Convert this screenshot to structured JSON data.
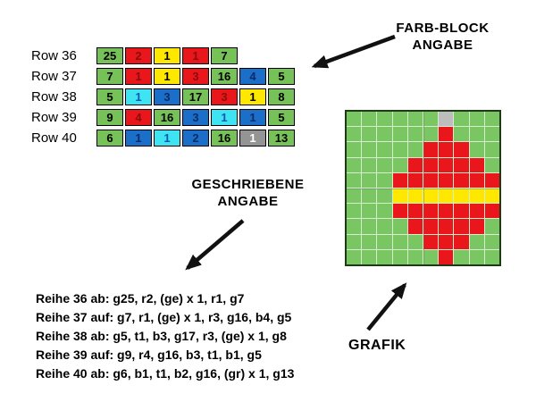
{
  "labels": {
    "farb_block": {
      "line1": "FARB-BLOCK",
      "line2": "ANGABE"
    },
    "geschriebene": {
      "line1": "GESCHRIEBENE",
      "line2": "ANGABE"
    },
    "grafik": "GRAFIK"
  },
  "palette": {
    "green": "#77c159",
    "red": "#e9161c",
    "yellow": "#ffe800",
    "blue": "#1b6fc9",
    "cyan": "#3fe4f2",
    "gray": "#949494",
    "cell_text": {
      "green": "#000000",
      "red": "#8a0d0d",
      "yellow": "#000000",
      "blue": "#0b2a66",
      "cyan": "#1255b4",
      "gray": "#ffffff"
    },
    "grid_background_green": "#7ac662",
    "grid_gray": "#bdbdbd",
    "grid_line": "#d8ecd0",
    "grid_border": "#1c3b14",
    "arrow": "#111111"
  },
  "color_block_table": {
    "rows": [
      {
        "label": "Row 36",
        "cells": [
          {
            "value": "25",
            "color": "green"
          },
          {
            "value": "2",
            "color": "red"
          },
          {
            "value": "1",
            "color": "yellow"
          },
          {
            "value": "1",
            "color": "red"
          },
          {
            "value": "7",
            "color": "green"
          }
        ]
      },
      {
        "label": "Row 37",
        "cells": [
          {
            "value": "7",
            "color": "green"
          },
          {
            "value": "1",
            "color": "red"
          },
          {
            "value": "1",
            "color": "yellow"
          },
          {
            "value": "3",
            "color": "red"
          },
          {
            "value": "16",
            "color": "green"
          },
          {
            "value": "4",
            "color": "blue"
          },
          {
            "value": "5",
            "color": "green"
          }
        ]
      },
      {
        "label": "Row 38",
        "cells": [
          {
            "value": "5",
            "color": "green"
          },
          {
            "value": "1",
            "color": "cyan"
          },
          {
            "value": "3",
            "color": "blue"
          },
          {
            "value": "17",
            "color": "green"
          },
          {
            "value": "3",
            "color": "red"
          },
          {
            "value": "1",
            "color": "yellow"
          },
          {
            "value": "8",
            "color": "green"
          }
        ]
      },
      {
        "label": "Row 39",
        "cells": [
          {
            "value": "9",
            "color": "green"
          },
          {
            "value": "4",
            "color": "red"
          },
          {
            "value": "16",
            "color": "green"
          },
          {
            "value": "3",
            "color": "blue"
          },
          {
            "value": "1",
            "color": "cyan"
          },
          {
            "value": "1",
            "color": "blue"
          },
          {
            "value": "5",
            "color": "green"
          }
        ]
      },
      {
        "label": "Row 40",
        "cells": [
          {
            "value": "6",
            "color": "green"
          },
          {
            "value": "1",
            "color": "blue"
          },
          {
            "value": "1",
            "color": "cyan"
          },
          {
            "value": "2",
            "color": "blue"
          },
          {
            "value": "16",
            "color": "green"
          },
          {
            "value": "1",
            "color": "gray"
          },
          {
            "value": "13",
            "color": "green"
          }
        ]
      }
    ]
  },
  "written_instructions": [
    "Reihe 36 ab: g25, r2, (ge) x 1, r1, g7",
    "Reihe 37 auf: g7, r1, (ge) x 1, r3, g16, b4, g5",
    "Reihe 38 ab: g5, t1, b3, g17, r3, (ge) x 1, g8",
    "Reihe 39 auf: g9, r4, g16, b3, t1, b1, g5",
    "Reihe 40 ab: g6, b1, t1, b2, g16, (gr) x 1, g13"
  ],
  "pattern_grid": {
    "columns": 10,
    "rows": 10,
    "cell_codes": {
      "g": "green",
      "r": "red",
      "y": "yellow",
      "x": "gray"
    },
    "row_strings": [
      "ggggggxggg",
      "ggggggrggg",
      "gggggrrrgg",
      "ggggrrrrrg",
      "gggrrrrrrr",
      "gggyyyyyyy",
      "gggrrrrrrr",
      "ggggrrrrrg",
      "gggggrrrgg",
      "ggggggrggg"
    ]
  }
}
